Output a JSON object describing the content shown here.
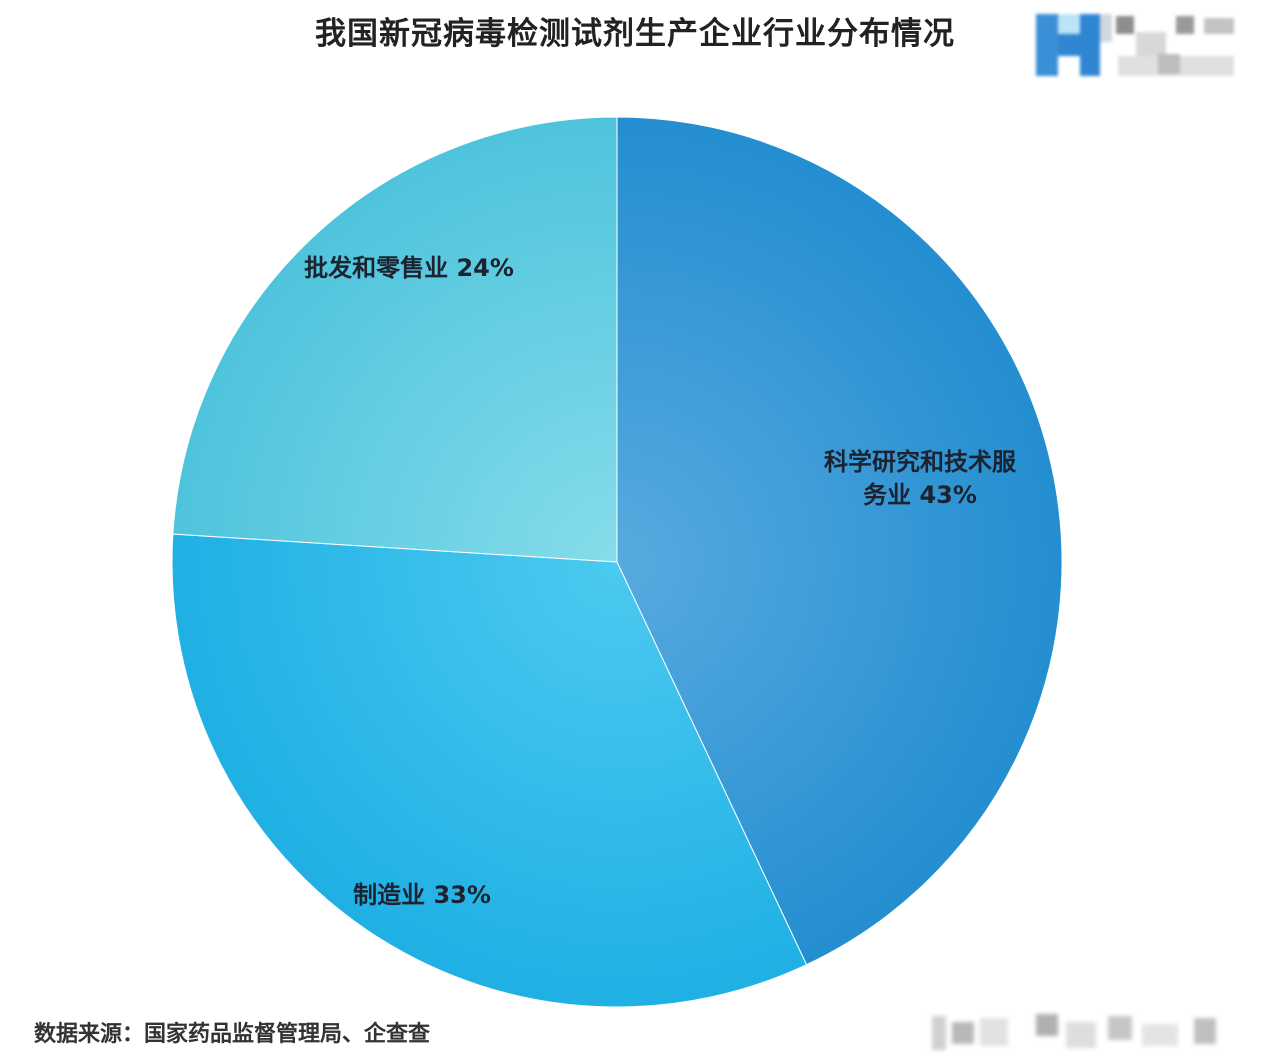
{
  "title": "我国新冠病毒检测试剂生产企业行业分布情况",
  "source": "数据来源：国家药品监督管理局、企查查",
  "colors": {
    "science": "#2f96d4",
    "manufacturing": "#31b9e9",
    "wholesale": "#66cfe2"
  },
  "chart_data": {
    "type": "pie",
    "title": "我国新冠病毒检测试剂生产企业行业分布情况",
    "slices": [
      {
        "label_lines": [
          "科学研究和技术服",
          "务业 43%"
        ],
        "value": 43,
        "color": "#2f96d4"
      },
      {
        "label_lines": [
          "制造业 33%"
        ],
        "value": 33,
        "color": "#31b9e9"
      },
      {
        "label_lines": [
          "批发和零售业 24%"
        ],
        "value": 24,
        "color": "#66cfe2"
      }
    ]
  }
}
